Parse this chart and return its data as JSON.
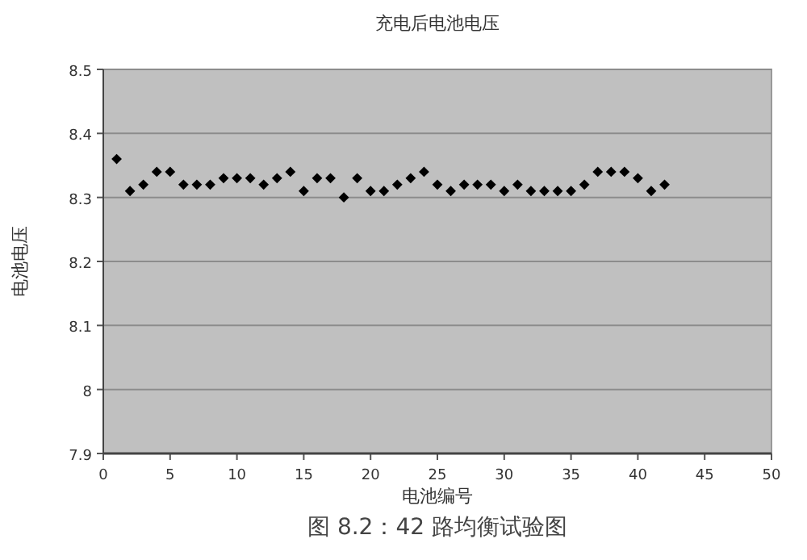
{
  "chart_data": {
    "type": "scatter",
    "title": "充电后电池电压",
    "xlabel": "电池编号",
    "ylabel": "电池电压",
    "annotations": [
      "图 8.2：42 路均衡试验图"
    ],
    "x": [
      1,
      2,
      3,
      4,
      5,
      6,
      7,
      8,
      9,
      10,
      11,
      12,
      13,
      14,
      15,
      16,
      17,
      18,
      19,
      20,
      21,
      22,
      23,
      24,
      25,
      26,
      27,
      28,
      29,
      30,
      31,
      32,
      33,
      34,
      35,
      36,
      37,
      38,
      39,
      40,
      41,
      42
    ],
    "series": [
      {
        "color": "#000000",
        "values": [
          8.36,
          8.31,
          8.32,
          8.34,
          8.34,
          8.32,
          8.32,
          8.32,
          8.33,
          8.33,
          8.33,
          8.32,
          8.33,
          8.34,
          8.31,
          8.33,
          8.33,
          8.3,
          8.33,
          8.31,
          8.31,
          8.32,
          8.33,
          8.34,
          8.32,
          8.31,
          8.32,
          8.32,
          8.32,
          8.31,
          8.32,
          8.31,
          8.31,
          8.31,
          8.31,
          8.32,
          8.34,
          8.34,
          8.34,
          8.33,
          8.31,
          8.32
        ]
      }
    ],
    "xlim": [
      0,
      50
    ],
    "ylim": [
      7.9,
      8.5
    ],
    "xticks": [
      0,
      5,
      10,
      15,
      20,
      25,
      30,
      35,
      40,
      45,
      50
    ],
    "yticks": [
      7.9,
      8,
      8.1,
      8.2,
      8.3,
      8.4,
      8.5
    ],
    "grid": "y",
    "marker": "diamond"
  }
}
